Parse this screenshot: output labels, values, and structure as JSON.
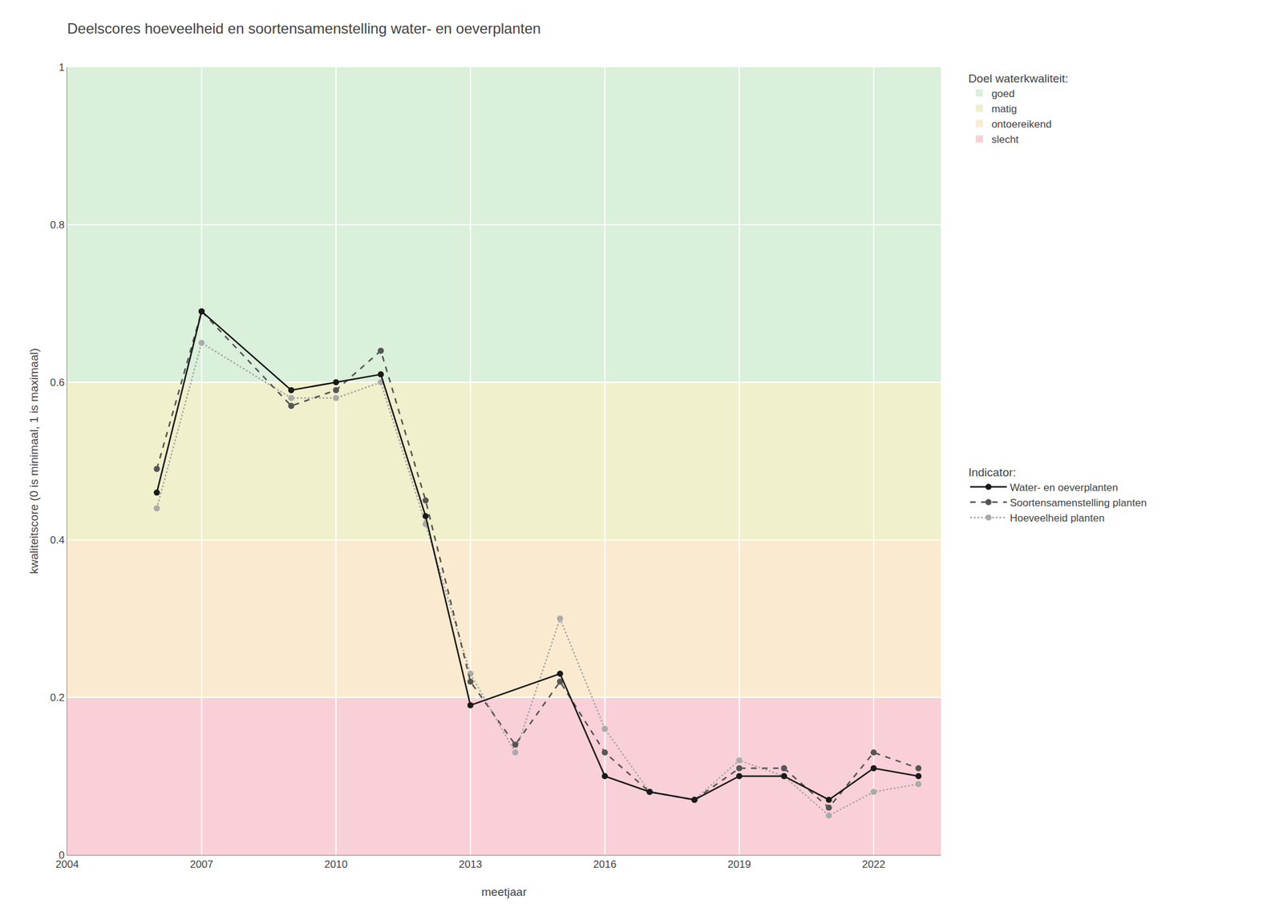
{
  "chart_data": {
    "type": "line",
    "title": "Deelscores hoeveelheid en soortensamenstelling water- en oeverplanten",
    "xlabel": "meetjaar",
    "ylabel": "kwaliteitscore (0 is minimaal, 1 is maximaal)",
    "xlim": [
      2004,
      2023.5
    ],
    "ylim": [
      0.0,
      1.0
    ],
    "xticks": [
      2004,
      2007,
      2010,
      2013,
      2016,
      2019,
      2022
    ],
    "yticks": [
      0,
      {
        "value": 0.2,
        "label": "0.2"
      },
      {
        "value": 0.4,
        "label": "0.4"
      },
      {
        "value": 0.6,
        "label": "0.6"
      },
      {
        "value": 0.8,
        "label": "0.8"
      },
      1
    ],
    "grid": true,
    "zones_title": "Doel waterkwaliteit:",
    "zones": [
      {
        "name": "goed",
        "ymin": 0.6,
        "ymax": 1.0,
        "color": "#daf0da"
      },
      {
        "name": "matig",
        "ymin": 0.4,
        "ymax": 0.6,
        "color": "#f0f0cc"
      },
      {
        "name": "ontoereikend",
        "ymin": 0.2,
        "ymax": 0.4,
        "color": "#faebd0"
      },
      {
        "name": "slecht",
        "ymin": 0.0,
        "ymax": 0.2,
        "color": "#fad0d8"
      }
    ],
    "series_title": "Indicator:",
    "series": [
      {
        "name": "Hoeveelheid planten",
        "color": "#aaaaaa",
        "line_style": "dotted",
        "marker": "circle",
        "x": [
          2006,
          2007,
          2009,
          2010,
          2011,
          2012,
          2013,
          2014,
          2015,
          2016,
          2017,
          2018,
          2019,
          2020,
          2021,
          2022,
          2023
        ],
        "values": [
          0.44,
          0.65,
          0.58,
          0.58,
          0.6,
          0.42,
          0.23,
          0.13,
          0.3,
          0.16,
          0.08,
          0.07,
          0.12,
          0.1,
          0.05,
          0.08,
          0.09
        ]
      },
      {
        "name": "Soortensamenstelling planten",
        "color": "#555555",
        "line_style": "dashed",
        "marker": "circle",
        "x": [
          2006,
          2007,
          2009,
          2010,
          2011,
          2012,
          2013,
          2014,
          2015,
          2016,
          2017,
          2018,
          2019,
          2020,
          2021,
          2022,
          2023
        ],
        "values": [
          0.49,
          0.69,
          0.57,
          0.59,
          0.64,
          0.45,
          0.22,
          0.14,
          0.22,
          0.13,
          0.08,
          0.07,
          0.11,
          0.11,
          0.06,
          0.13,
          0.11
        ]
      },
      {
        "name": "Water- en oeverplanten",
        "color": "#1a1a1a",
        "line_style": "solid",
        "marker": "circle",
        "x": [
          2006,
          2007,
          2009,
          2010,
          2011,
          2012,
          2013,
          2015,
          2016,
          2017,
          2018,
          2019,
          2020,
          2021,
          2022,
          2023
        ],
        "values": [
          0.46,
          0.69,
          0.59,
          0.6,
          0.61,
          0.43,
          0.19,
          0.23,
          0.1,
          0.08,
          0.07,
          0.1,
          0.1,
          0.07,
          0.11,
          0.1
        ]
      }
    ]
  }
}
